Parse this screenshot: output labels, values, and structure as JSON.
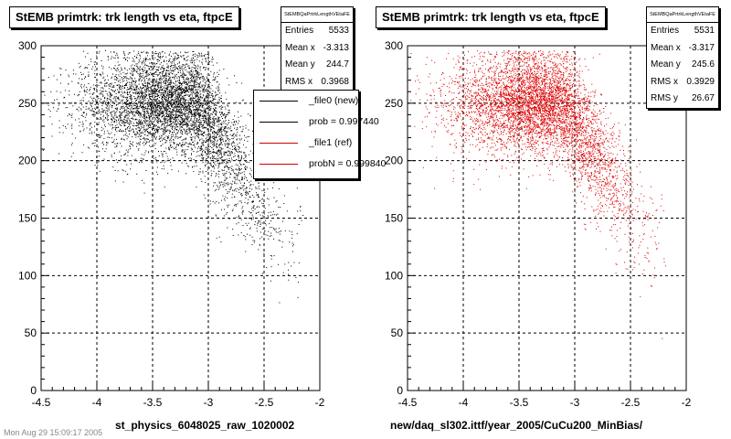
{
  "chart_data": [
    {
      "type": "scatter",
      "title": "StEMB primtrk: trk length vs eta, ftpcE",
      "xlabel": "st_physics_6048025_raw_1020002",
      "ylabel": "",
      "xlim": [
        -4.5,
        -2
      ],
      "ylim": [
        0,
        300
      ],
      "x_ticks": [
        "-4.5",
        "-4",
        "-3.5",
        "-3",
        "-2.5",
        "-2"
      ],
      "y_ticks": [
        "0",
        "50",
        "100",
        "150",
        "200",
        "250",
        "300"
      ],
      "grid": true,
      "marker_color": "#000000",
      "stats": {
        "header": "StEMBQaPrtrkLengthVEtaFE",
        "rows": [
          {
            "label": "Entries",
            "value": "5533"
          },
          {
            "label": "Mean x",
            "value": "-3.313"
          },
          {
            "label": "Mean y",
            "value": "244.7"
          },
          {
            "label": "RMS x",
            "value": "0.3968"
          }
        ]
      },
      "legend": [
        {
          "label": "_file0 (new)",
          "color": "#000000"
        },
        {
          "label": "prob = 0.997440",
          "color": "#000000"
        },
        {
          "label": "_file1 (ref)",
          "color": "#cc0000"
        },
        {
          "label": "probN = 0.999840",
          "color": "#cc0000"
        }
      ],
      "n_points": 5533,
      "density_model": {
        "x_center": -3.3,
        "x_spread": 0.4,
        "y_plateau": 250,
        "y_spread": 22,
        "falloff_start_x": -3.1,
        "falloff_end_x": -2.3,
        "y_at_falloff_end": 130
      }
    },
    {
      "type": "scatter",
      "title": "StEMB primtrk: trk length vs eta, ftpcE",
      "xlabel": "new/daq_sl302.ittf/year_2005/CuCu200_MinBias/",
      "ylabel": "",
      "xlim": [
        -4.5,
        -2
      ],
      "ylim": [
        0,
        300
      ],
      "x_ticks": [
        "-4.5",
        "-4",
        "-3.5",
        "-3",
        "-2.5",
        "-2"
      ],
      "y_ticks": [
        "0",
        "50",
        "100",
        "150",
        "200",
        "250",
        "300"
      ],
      "grid": true,
      "marker_color": "#dd0000",
      "stats": {
        "header": "StEMBQaPrtrkLengthVEtaFE",
        "rows": [
          {
            "label": "Entries",
            "value": "5531"
          },
          {
            "label": "Mean x",
            "value": "-3.317"
          },
          {
            "label": "Mean y",
            "value": "245.6"
          },
          {
            "label": "RMS x",
            "value": "0.3929"
          },
          {
            "label": "RMS y",
            "value": "26.67"
          }
        ]
      },
      "n_points": 5531,
      "density_model": {
        "x_center": -3.3,
        "x_spread": 0.4,
        "y_plateau": 250,
        "y_spread": 22,
        "falloff_start_x": -3.1,
        "falloff_end_x": -2.3,
        "y_at_falloff_end": 130
      }
    }
  ],
  "footer_ghost": "Mon Aug 29 15:09:17 2005"
}
